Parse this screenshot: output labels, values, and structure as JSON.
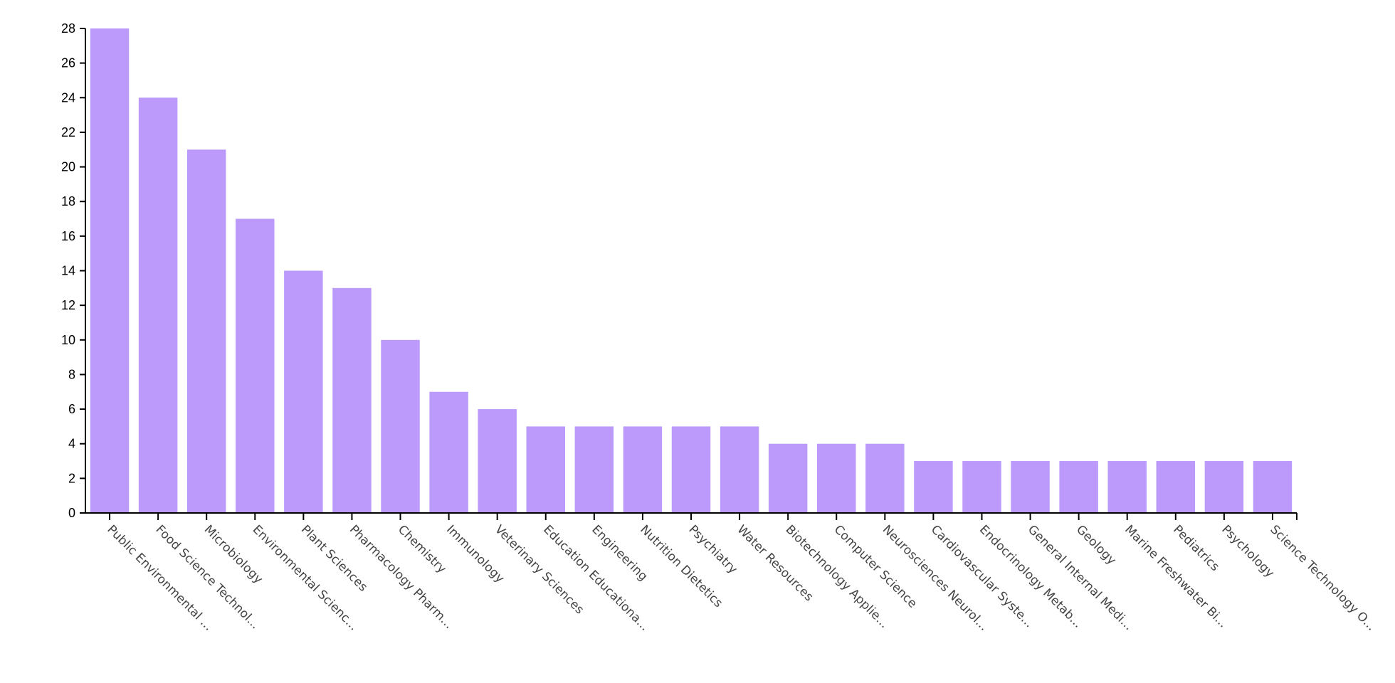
{
  "chart_data": {
    "type": "bar",
    "title": "",
    "xlabel": "",
    "ylabel": "",
    "ylim": [
      0,
      28
    ],
    "yticks": [
      0,
      2,
      4,
      6,
      8,
      10,
      12,
      14,
      16,
      18,
      20,
      22,
      24,
      26,
      28
    ],
    "grid": false,
    "bar_color": "#bb9afc",
    "categories": [
      "Public Environmental ...",
      "Food Science Technol...",
      "Microbiology",
      "Environmental Scienc...",
      "Plant Sciences",
      "Pharmacology Pharm...",
      "Chemistry",
      "Immunology",
      "Veterinary Sciences",
      "Education Educationa...",
      "Engineering",
      "Nutrition Dietetics",
      "Psychiatry",
      "Water Resources",
      "Biotechnology Applie...",
      "Computer Science",
      "Neurosciences Neurol...",
      "Cardiovascular Syste...",
      "Endocrinology Metab...",
      "General Internal Medi...",
      "Geology",
      "Marine Freshwater Bi...",
      "Pediatrics",
      "Psychology",
      "Science Technology O..."
    ],
    "values": [
      28,
      24,
      21,
      17,
      14,
      13,
      10,
      7,
      6,
      5,
      5,
      5,
      5,
      5,
      4,
      4,
      4,
      3,
      3,
      3,
      3,
      3,
      3,
      3,
      3
    ]
  }
}
